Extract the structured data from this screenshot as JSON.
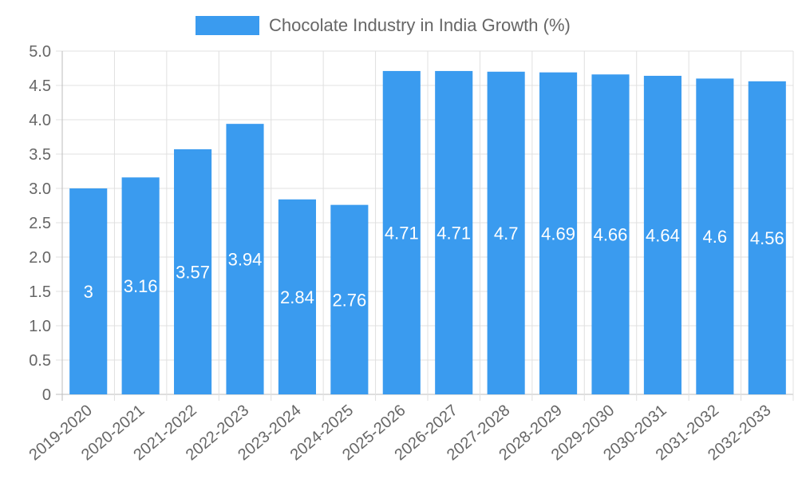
{
  "colors": {
    "bar": "#3a9bef",
    "grid": "#e0e0e0",
    "text": "#666666",
    "label": "#ffffff"
  },
  "chart_data": {
    "type": "bar",
    "title": "",
    "xlabel": "",
    "ylabel": "",
    "legend": {
      "position": "top-center",
      "entries": [
        "Chocolate Industry in India Growth (%)"
      ]
    },
    "grid": true,
    "ylim": [
      0,
      5.0
    ],
    "y_ticks": [
      "0",
      "0.5",
      "1.0",
      "1.5",
      "2.0",
      "2.5",
      "3.0",
      "3.5",
      "4.0",
      "4.5",
      "5.0"
    ],
    "categories": [
      "2019-2020",
      "2020-2021",
      "2021-2022",
      "2022-2023",
      "2023-2024",
      "2024-2025",
      "2025-2026",
      "2026-2027",
      "2027-2028",
      "2028-2029",
      "2029-2030",
      "2030-2031",
      "2031-2032",
      "2032-2033"
    ],
    "series": [
      {
        "name": "Chocolate Industry in India Growth (%)",
        "values": [
          3,
          3.16,
          3.57,
          3.94,
          2.84,
          2.76,
          4.71,
          4.71,
          4.7,
          4.69,
          4.66,
          4.64,
          4.6,
          4.56
        ],
        "labels": [
          "3",
          "3.16",
          "3.57",
          "3.94",
          "2.84",
          "2.76",
          "4.71",
          "4.71",
          "4.7",
          "4.69",
          "4.66",
          "4.64",
          "4.6",
          "4.56"
        ]
      }
    ]
  }
}
